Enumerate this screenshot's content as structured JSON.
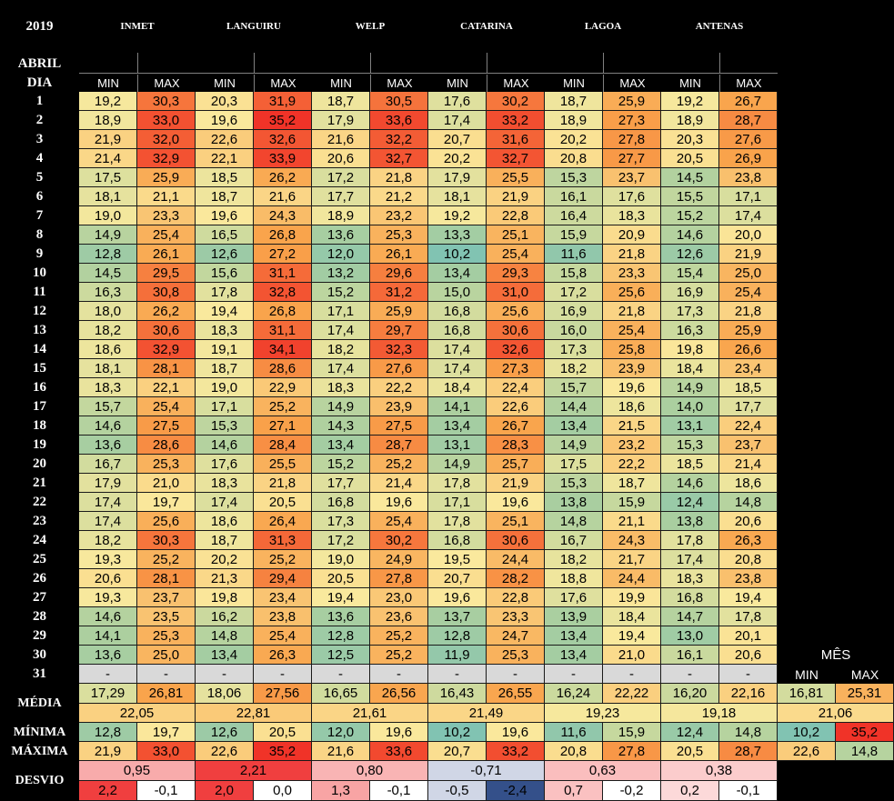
{
  "year": "2019",
  "month": "ABRIL",
  "day_header": "DIA",
  "min_label": "MIN",
  "max_label": "MAX",
  "stations": [
    "INMET",
    "LANGUIRU",
    "WELP",
    "CATARINA",
    "LAGOA",
    "ANTENAS"
  ],
  "days": [
    "1",
    "2",
    "3",
    "4",
    "5",
    "6",
    "7",
    "8",
    "9",
    "10",
    "11",
    "12",
    "13",
    "14",
    "15",
    "16",
    "17",
    "18",
    "19",
    "20",
    "21",
    "22",
    "23",
    "24",
    "25",
    "26",
    "27",
    "28",
    "29",
    "30"
  ],
  "rows": [
    [
      "19,2",
      "30,3",
      "20,3",
      "31,9",
      "18,7",
      "30,5",
      "17,6",
      "30,2",
      "18,7",
      "25,9",
      "19,2",
      "26,7"
    ],
    [
      "18,9",
      "33,0",
      "19,6",
      "35,2",
      "17,9",
      "33,6",
      "17,4",
      "33,2",
      "18,9",
      "27,3",
      "18,9",
      "28,7"
    ],
    [
      "21,9",
      "32,0",
      "22,6",
      "32,6",
      "21,6",
      "32,2",
      "20,7",
      "31,6",
      "20,2",
      "27,8",
      "20,3",
      "27,6"
    ],
    [
      "21,4",
      "32,9",
      "22,1",
      "33,9",
      "20,6",
      "32,7",
      "20,2",
      "32,7",
      "20,8",
      "27,7",
      "20,5",
      "26,9"
    ],
    [
      "17,5",
      "25,9",
      "18,5",
      "26,2",
      "17,2",
      "21,8",
      "17,9",
      "25,5",
      "15,3",
      "23,7",
      "14,5",
      "23,8"
    ],
    [
      "18,1",
      "21,1",
      "18,7",
      "21,6",
      "17,7",
      "21,2",
      "18,1",
      "21,9",
      "16,1",
      "17,6",
      "15,5",
      "17,1"
    ],
    [
      "19,0",
      "23,3",
      "19,6",
      "24,3",
      "18,9",
      "23,2",
      "19,2",
      "22,8",
      "16,4",
      "18,3",
      "15,2",
      "17,4"
    ],
    [
      "14,9",
      "25,4",
      "16,5",
      "26,8",
      "13,6",
      "25,3",
      "13,3",
      "25,1",
      "15,9",
      "20,9",
      "14,6",
      "20,0"
    ],
    [
      "12,8",
      "26,1",
      "12,6",
      "27,2",
      "12,0",
      "26,1",
      "10,2",
      "25,4",
      "11,6",
      "21,8",
      "12,6",
      "21,9"
    ],
    [
      "14,5",
      "29,5",
      "15,6",
      "31,1",
      "13,2",
      "29,6",
      "13,4",
      "29,3",
      "15,8",
      "23,3",
      "15,4",
      "25,0"
    ],
    [
      "16,3",
      "30,8",
      "17,8",
      "32,8",
      "15,2",
      "31,2",
      "15,0",
      "31,0",
      "17,2",
      "25,6",
      "16,9",
      "25,4"
    ],
    [
      "18,0",
      "26,2",
      "19,4",
      "26,8",
      "17,1",
      "25,9",
      "16,8",
      "25,6",
      "16,9",
      "21,8",
      "17,3",
      "21,8"
    ],
    [
      "18,2",
      "30,6",
      "18,3",
      "31,1",
      "17,4",
      "29,7",
      "16,8",
      "30,6",
      "16,0",
      "25,4",
      "16,3",
      "25,9"
    ],
    [
      "18,6",
      "32,9",
      "19,1",
      "34,1",
      "18,2",
      "32,3",
      "17,4",
      "32,6",
      "17,3",
      "25,8",
      "19,8",
      "26,6"
    ],
    [
      "18,1",
      "28,1",
      "18,7",
      "28,6",
      "17,4",
      "27,6",
      "17,4",
      "27,3",
      "18,2",
      "23,9",
      "18,4",
      "23,4"
    ],
    [
      "18,3",
      "22,1",
      "19,0",
      "22,9",
      "18,3",
      "22,2",
      "18,4",
      "22,4",
      "15,7",
      "19,6",
      "14,9",
      "18,5"
    ],
    [
      "15,7",
      "25,4",
      "17,1",
      "25,2",
      "14,9",
      "23,9",
      "14,1",
      "22,6",
      "14,4",
      "18,6",
      "14,0",
      "17,7"
    ],
    [
      "14,6",
      "27,5",
      "15,3",
      "27,1",
      "14,3",
      "27,5",
      "13,4",
      "26,7",
      "13,4",
      "21,5",
      "13,1",
      "22,4"
    ],
    [
      "13,6",
      "28,6",
      "14,6",
      "28,4",
      "13,4",
      "28,7",
      "13,1",
      "28,3",
      "14,9",
      "23,2",
      "15,3",
      "23,7"
    ],
    [
      "16,7",
      "25,3",
      "17,6",
      "25,5",
      "15,2",
      "25,2",
      "14,9",
      "25,7",
      "17,5",
      "22,2",
      "18,5",
      "21,4"
    ],
    [
      "17,9",
      "21,0",
      "18,3",
      "21,8",
      "17,7",
      "21,4",
      "17,8",
      "21,9",
      "15,3",
      "18,7",
      "14,6",
      "18,6"
    ],
    [
      "17,4",
      "19,7",
      "17,4",
      "20,5",
      "16,8",
      "19,6",
      "17,1",
      "19,6",
      "13,8",
      "15,9",
      "12,4",
      "14,8"
    ],
    [
      "17,4",
      "25,6",
      "18,6",
      "26,4",
      "17,3",
      "25,4",
      "17,8",
      "25,1",
      "14,8",
      "21,1",
      "13,8",
      "20,6"
    ],
    [
      "18,2",
      "30,3",
      "18,7",
      "31,3",
      "17,2",
      "30,2",
      "16,8",
      "30,6",
      "16,7",
      "24,3",
      "17,8",
      "26,3"
    ],
    [
      "19,3",
      "25,2",
      "20,2",
      "25,2",
      "19,0",
      "24,9",
      "19,5",
      "24,4",
      "18,2",
      "21,7",
      "17,4",
      "20,8"
    ],
    [
      "20,6",
      "28,1",
      "21,3",
      "29,4",
      "20,5",
      "27,8",
      "20,7",
      "28,2",
      "18,8",
      "24,4",
      "18,3",
      "23,8"
    ],
    [
      "19,3",
      "23,7",
      "19,8",
      "23,4",
      "19,4",
      "23,0",
      "19,6",
      "22,8",
      "17,6",
      "19,9",
      "16,8",
      "19,4"
    ],
    [
      "14,6",
      "23,5",
      "16,2",
      "23,8",
      "13,6",
      "23,6",
      "13,7",
      "23,3",
      "13,9",
      "18,4",
      "14,7",
      "17,8"
    ],
    [
      "14,1",
      "25,3",
      "14,8",
      "25,4",
      "12,8",
      "25,2",
      "12,8",
      "24,7",
      "13,4",
      "19,4",
      "13,0",
      "20,1"
    ],
    [
      "13,6",
      "25,0",
      "13,4",
      "26,3",
      "12,5",
      "25,2",
      "11,9",
      "25,3",
      "13,4",
      "21,0",
      "16,1",
      "20,6"
    ]
  ],
  "row31": {
    "day": "31",
    "values": [
      "-",
      "-",
      "-",
      "-",
      "-",
      "-",
      "-",
      "-",
      "-",
      "-",
      "-",
      "-"
    ]
  },
  "media": {
    "label": "MÉDIA",
    "values": [
      "17,29",
      "26,81",
      "18,06",
      "27,56",
      "16,65",
      "26,56",
      "16,43",
      "26,55",
      "16,24",
      "22,22",
      "16,20",
      "22,16"
    ],
    "combined": [
      "22,05",
      "22,81",
      "21,61",
      "21,49",
      "19,23",
      "19,18"
    ]
  },
  "minima": {
    "label": "MÍNIMA",
    "values": [
      "12,8",
      "19,7",
      "12,6",
      "20,5",
      "12,0",
      "19,6",
      "10,2",
      "19,6",
      "11,6",
      "15,9",
      "12,4",
      "14,8"
    ]
  },
  "maxima": {
    "label": "MÁXIMA",
    "values": [
      "21,9",
      "33,0",
      "22,6",
      "35,2",
      "21,6",
      "33,6",
      "20,7",
      "33,2",
      "20,8",
      "27,8",
      "20,5",
      "28,7"
    ]
  },
  "desvio": {
    "label": "DESVIO",
    "combined": [
      "0,95",
      "2,21",
      "0,80",
      "-0,71",
      "0,63",
      "0,38"
    ],
    "values": [
      "2,2",
      "-0,1",
      "2,0",
      "0,0",
      "1,3",
      "-0,1",
      "-0,5",
      "-2,4",
      "0,7",
      "-0,2",
      "0,2",
      "-0,1"
    ]
  },
  "mes": {
    "title": "MÊS",
    "min_label": "MIN",
    "max_label": "MAX",
    "media": [
      "16,81",
      "25,31"
    ],
    "media_combined": "21,06",
    "minima": [
      "10,2",
      "35,2"
    ],
    "maxima": [
      "22,6",
      "14,8"
    ]
  },
  "colors": {
    "cool": "#7fc2b3",
    "green": "#abcf9f",
    "yellow": "#fae99d",
    "orange": "#f9a24a",
    "red": "#f02f27",
    "blank": "#d9d9d9",
    "dev_pos_strong": "#f03f3f",
    "dev_pos_light": "#fbd3d0",
    "dev_neg_light": "#d0d6e6",
    "dev_neg_strong": "#34508a",
    "dev_zero": "#ffffff"
  }
}
